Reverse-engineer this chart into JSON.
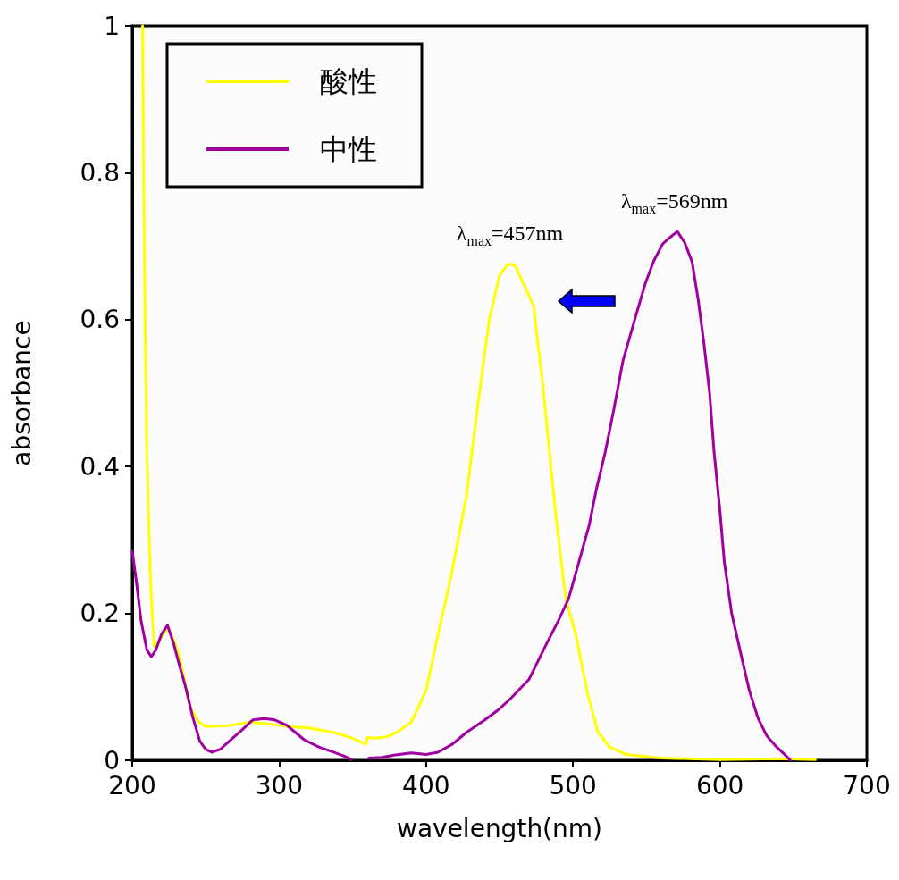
{
  "chart_data": {
    "type": "line",
    "xlabel": "wavelength(nm)",
    "ylabel": "absorbance",
    "xlim": [
      200,
      700
    ],
    "xticks": [
      200,
      300,
      400,
      500,
      600,
      700
    ],
    "ylim": [
      0,
      1
    ],
    "yticks": [
      0,
      0.2,
      0.4,
      0.6,
      0.8,
      1
    ],
    "grid": false,
    "legend": "top left",
    "marker": "none",
    "line_style": "solid",
    "series": [
      {
        "name": "酸性",
        "color": "#ffff00",
        "x": [
          207,
          208,
          209,
          210,
          211.5,
          213,
          215,
          219,
          224,
          228,
          232,
          236,
          240,
          245,
          250,
          265,
          280,
          295,
          306,
          320,
          337,
          350,
          359,
          360,
          366,
          373,
          380,
          390,
          400,
          408,
          417,
          427.5,
          435,
          443,
          450,
          455,
          458,
          461,
          466,
          473,
          479,
          488,
          495,
          502,
          510,
          517,
          525,
          536,
          560,
          600,
          640,
          665
        ],
        "values": [
          1,
          0.75,
          0.55,
          0.42,
          0.305,
          0.22,
          0.155,
          0.165,
          0.18,
          0.165,
          0.143,
          0.105,
          0.07,
          0.053,
          0.046,
          0.047,
          0.052,
          0.049,
          0.046,
          0.044,
          0.038,
          0.03,
          0.022,
          0.031,
          0.03,
          0.032,
          0.038,
          0.052,
          0.095,
          0.17,
          0.25,
          0.36,
          0.48,
          0.6,
          0.66,
          0.674,
          0.676,
          0.672,
          0.65,
          0.62,
          0.52,
          0.34,
          0.22,
          0.17,
          0.09,
          0.038,
          0.018,
          0.008,
          0.003,
          0.001,
          0.002,
          0.001
        ]
      },
      {
        "name": "中性",
        "color": "#a000a0",
        "x": [
          200,
          203,
          206,
          210,
          213,
          216,
          220,
          224,
          228,
          232,
          236,
          241,
          246,
          250,
          254,
          260,
          266,
          274,
          282,
          290,
          297,
          305,
          311,
          317,
          327,
          337,
          344,
          349,
          355,
          361,
          370,
          378,
          390,
          400,
          408,
          418,
          427.5,
          440,
          450,
          457,
          470,
          481.6,
          490,
          497,
          504,
          511,
          516,
          522,
          528,
          534,
          542,
          549,
          555,
          561,
          566,
          571,
          576,
          581,
          585,
          589,
          593,
          596,
          600,
          603,
          608,
          614,
          620,
          626,
          632,
          638.6,
          644,
          648
        ],
        "values": [
          0.285,
          0.24,
          0.19,
          0.15,
          0.141,
          0.15,
          0.172,
          0.184,
          0.16,
          0.13,
          0.102,
          0.06,
          0.026,
          0.015,
          0.011,
          0.015,
          0.026,
          0.04,
          0.055,
          0.057,
          0.055,
          0.048,
          0.038,
          0.028,
          0.018,
          0.011,
          0.006,
          0.001,
          null,
          0.003,
          0.004,
          0.007,
          0.01,
          0.008,
          0.011,
          0.022,
          0.038,
          0.055,
          0.07,
          0.083,
          0.11,
          0.157,
          0.19,
          0.22,
          0.27,
          0.32,
          0.37,
          0.42,
          0.48,
          0.544,
          0.6,
          0.648,
          0.68,
          0.703,
          0.712,
          0.72,
          0.705,
          0.679,
          0.63,
          0.57,
          0.5,
          0.42,
          0.34,
          0.27,
          0.2,
          0.147,
          0.095,
          0.057,
          0.033,
          0.018,
          0.008,
          0
        ]
      }
    ],
    "annotations": [
      {
        "text": "λ$_{max}$=457nm",
        "x": 457,
        "y": 0.676
      },
      {
        "text": "λ$_{max}$=569nm",
        "x": 569,
        "y": 0.72
      }
    ]
  }
}
